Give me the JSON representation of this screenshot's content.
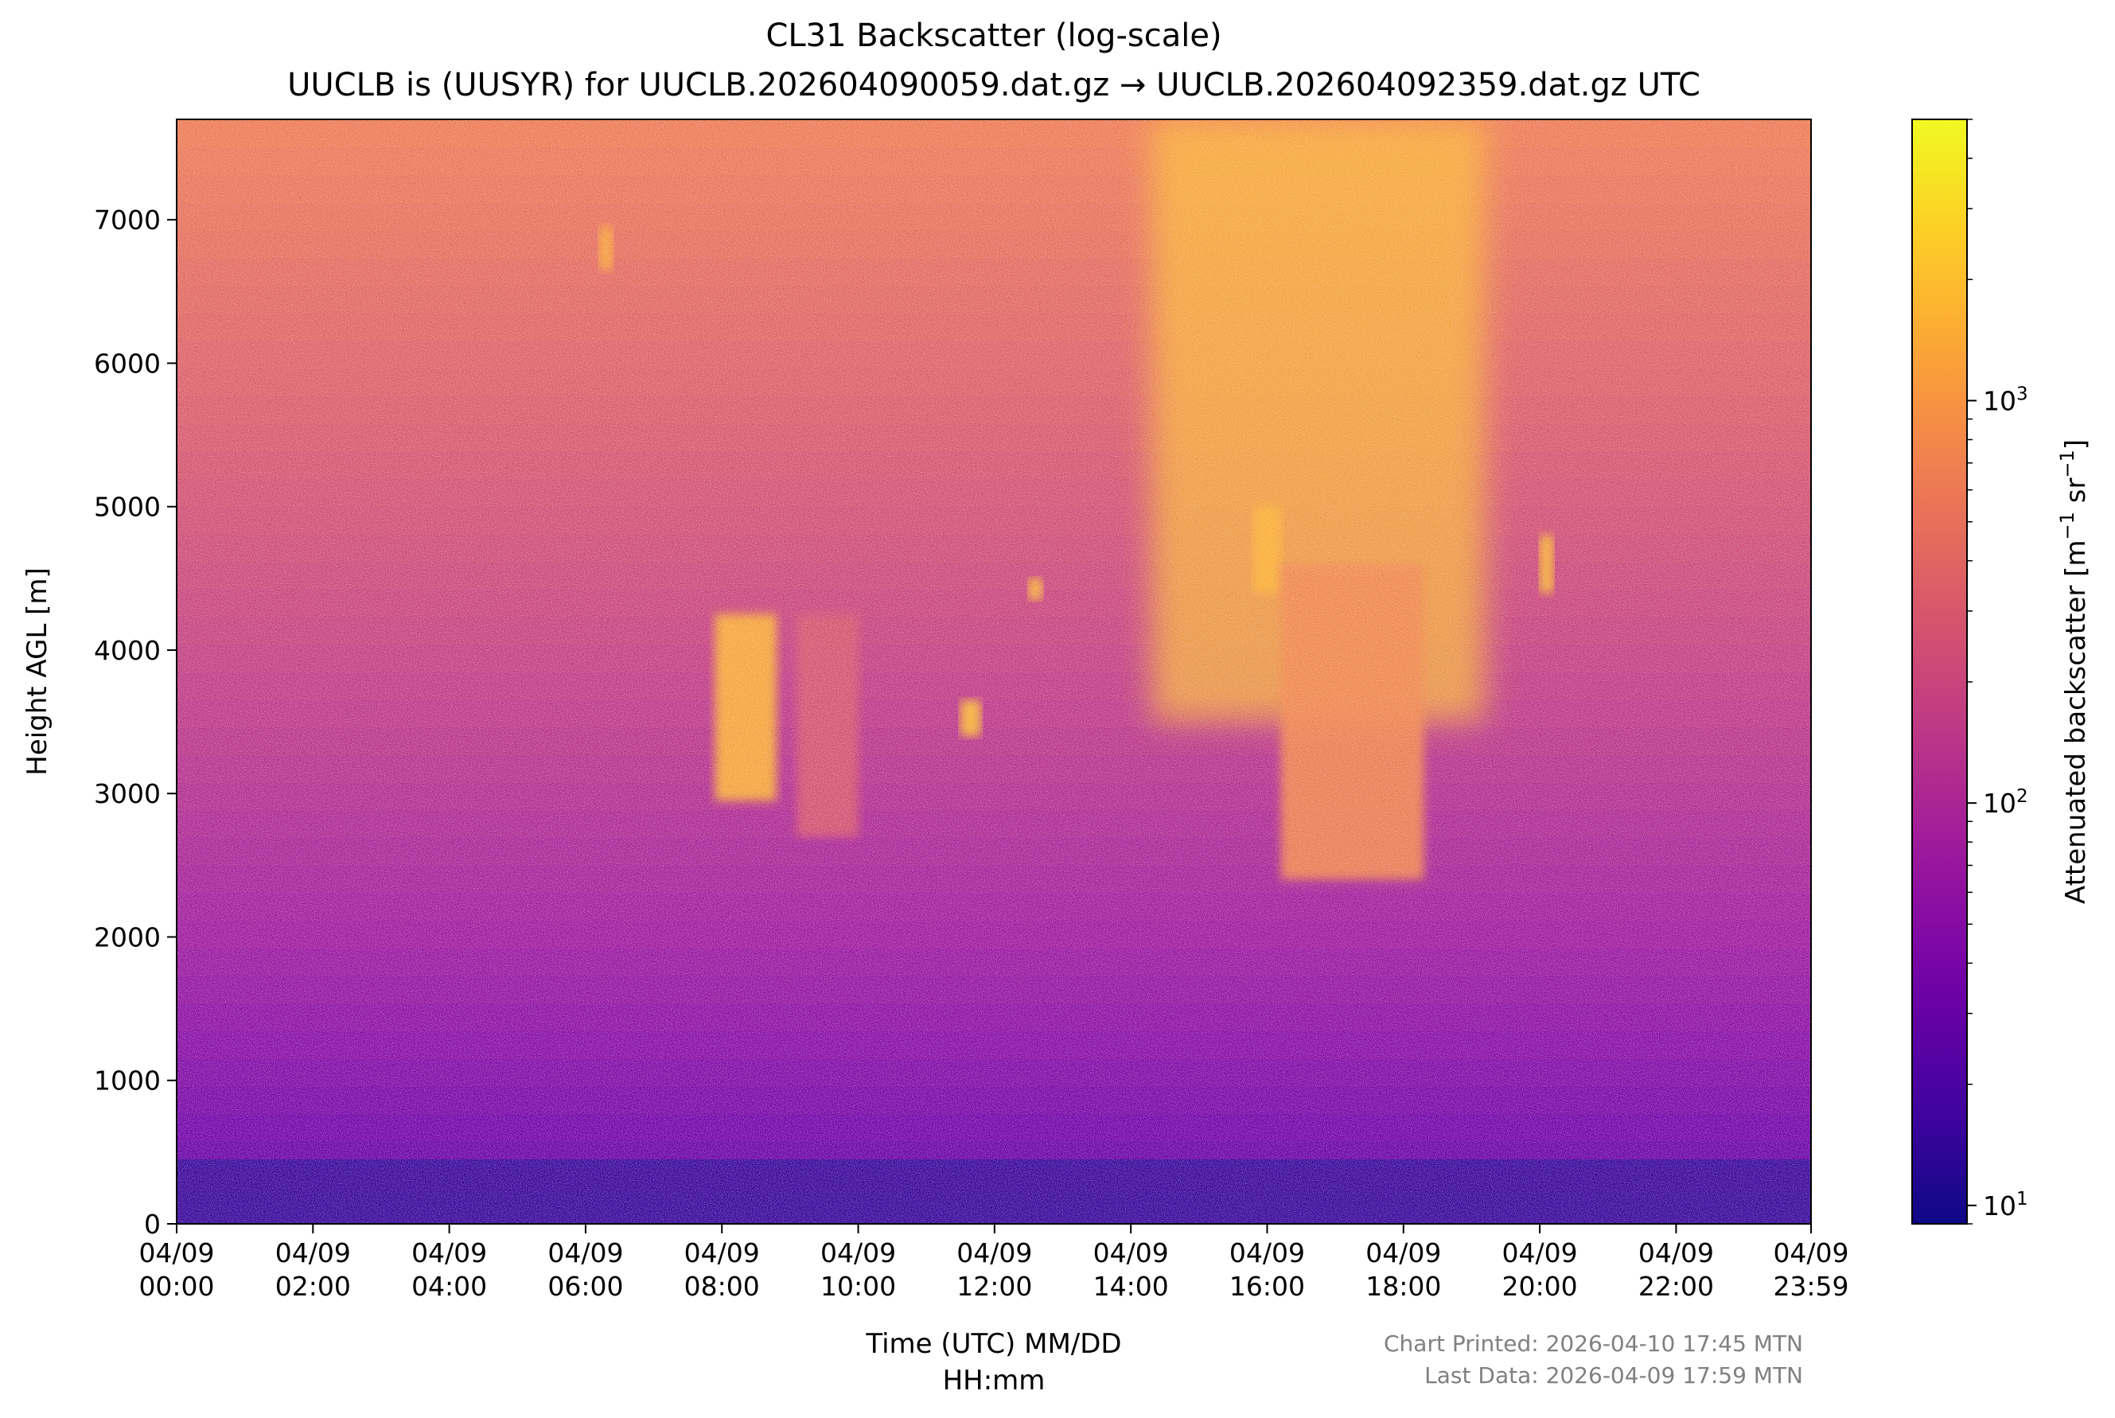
{
  "chart_data": {
    "type": "heatmap",
    "title": "CL31 Backscatter (log-scale)",
    "subtitle": "UUCLB is (UUSYR) for UUCLB.202604090059.dat.gz → UUCLB.202604092359.dat.gz UTC",
    "xlabel_line1": "Time (UTC) MM/DD",
    "xlabel_line2": "HH:mm",
    "ylabel": "Height AGL [m]",
    "xlim_hours": [
      0,
      23.98
    ],
    "ylim": [
      0,
      7700
    ],
    "x_ticks": [
      {
        "hour": 0,
        "date": "04/09",
        "time": "00:00"
      },
      {
        "hour": 2,
        "date": "04/09",
        "time": "02:00"
      },
      {
        "hour": 4,
        "date": "04/09",
        "time": "04:00"
      },
      {
        "hour": 6,
        "date": "04/09",
        "time": "06:00"
      },
      {
        "hour": 8,
        "date": "04/09",
        "time": "08:00"
      },
      {
        "hour": 10,
        "date": "04/09",
        "time": "10:00"
      },
      {
        "hour": 12,
        "date": "04/09",
        "time": "12:00"
      },
      {
        "hour": 14,
        "date": "04/09",
        "time": "14:00"
      },
      {
        "hour": 16,
        "date": "04/09",
        "time": "16:00"
      },
      {
        "hour": 18,
        "date": "04/09",
        "time": "18:00"
      },
      {
        "hour": 20,
        "date": "04/09",
        "time": "20:00"
      },
      {
        "hour": 22,
        "date": "04/09",
        "time": "22:00"
      },
      {
        "hour": 23.98,
        "date": "04/09",
        "time": "23:59"
      }
    ],
    "y_ticks": [
      0,
      1000,
      2000,
      3000,
      4000,
      5000,
      6000,
      7000
    ],
    "colorbar": {
      "label_main": "Attenuated backscatter [m",
      "label_sup1": "−1",
      "label_mid": " sr",
      "label_sup2": "−1",
      "label_end": "]",
      "scale": "log",
      "range": [
        9,
        5000
      ],
      "colormap": "plasma",
      "major_ticks": [
        {
          "value": 10,
          "base": "10",
          "exp": "1"
        },
        {
          "value": 100,
          "base": "10",
          "exp": "2"
        },
        {
          "value": 1000,
          "base": "10",
          "exp": "3"
        }
      ]
    },
    "colormap_stops": [
      "#0d0887",
      "#46039f",
      "#7201a8",
      "#9c179e",
      "#bd3786",
      "#d8576b",
      "#ed7953",
      "#fb9f3a",
      "#fdca26",
      "#f0f921"
    ],
    "features": [
      {
        "name": "surface layer",
        "x_hours": [
          0,
          23.98
        ],
        "height_m": [
          0,
          450
        ],
        "level": 0.08
      },
      {
        "name": "cloud patch",
        "x_hours": [
          7.9,
          8.8
        ],
        "height_m": [
          2950,
          4250
        ],
        "level": 0.82
      },
      {
        "name": "cloud patch",
        "x_hours": [
          9.1,
          10.0
        ],
        "height_m": [
          2700,
          4250
        ],
        "level": 0.55
      },
      {
        "name": "cloud patch",
        "x_hours": [
          11.5,
          11.8
        ],
        "height_m": [
          3400,
          3650
        ],
        "level": 0.85
      },
      {
        "name": "cloud patch",
        "x_hours": [
          12.5,
          12.7
        ],
        "height_m": [
          4350,
          4500
        ],
        "level": 0.85
      },
      {
        "name": "cloud patch",
        "x_hours": [
          6.2,
          6.4
        ],
        "height_m": [
          6650,
          6950
        ],
        "level": 0.8
      },
      {
        "name": "elevated backscatter",
        "x_hours": [
          14.3,
          19.2
        ],
        "height_m": [
          3500,
          7700
        ],
        "level": 0.85
      },
      {
        "name": "cloud patch",
        "x_hours": [
          15.8,
          16.2
        ],
        "height_m": [
          4400,
          5000
        ],
        "level": 0.82
      },
      {
        "name": "cloud patch",
        "x_hours": [
          16.2,
          18.3
        ],
        "height_m": [
          2400,
          4600
        ],
        "level": 0.7
      },
      {
        "name": "cloud patch",
        "x_hours": [
          20.0,
          20.2
        ],
        "height_m": [
          4400,
          4800
        ],
        "level": 0.85
      }
    ]
  },
  "footer": {
    "printed": "Chart Printed: 2026-04-10 17:45 MTN",
    "last_data": "Last Data: 2026-04-09 17:59 MTN"
  }
}
